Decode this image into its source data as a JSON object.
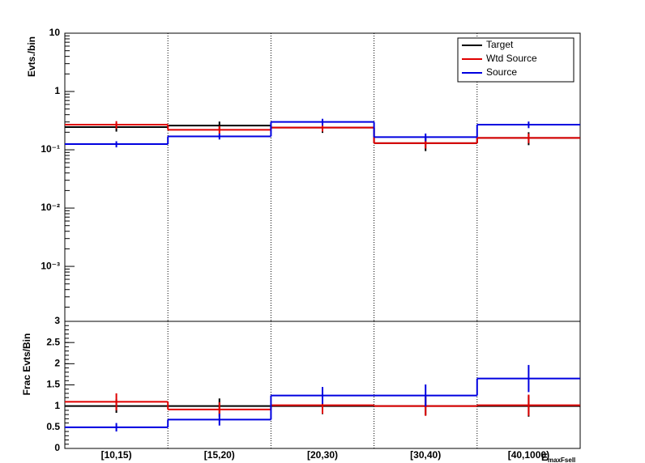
{
  "chart_data": [
    {
      "type": "step",
      "y_label": "Evts./bin",
      "log_scale": true,
      "ylim": [
        0.000114,
        10
      ],
      "yticks": [
        {
          "value": 0.001,
          "label": "10⁻³"
        },
        {
          "value": 0.01,
          "label": "10⁻²"
        },
        {
          "value": 0.1,
          "label": "10⁻¹"
        },
        1,
        10
      ],
      "categories": [
        "[10,15)",
        "[15,20)",
        "[20,30)",
        "[30,40)",
        "[40,1000)"
      ],
      "legend": "upper right",
      "grid_x": true,
      "series": [
        {
          "name": "Target",
          "color": "#000000",
          "values": [
            0.245,
            0.26,
            0.24,
            0.13,
            0.16
          ],
          "errors": [
            0.04,
            0.045,
            0.045,
            0.035,
            0.04
          ]
        },
        {
          "name": "Wtd Source",
          "color": "#e00000",
          "values": [
            0.27,
            0.22,
            0.24,
            0.13,
            0.16
          ],
          "errors": [
            0.04,
            0.035,
            0.035,
            0.025,
            0.03
          ]
        },
        {
          "name": "Source",
          "color": "#0000e0",
          "values": [
            0.125,
            0.17,
            0.3,
            0.165,
            0.27
          ],
          "errors": [
            0.015,
            0.02,
            0.04,
            0.025,
            0.035
          ]
        }
      ]
    },
    {
      "type": "step",
      "y_label": "Frac Evts/Bin",
      "log_scale": false,
      "ylim": [
        0,
        3
      ],
      "yticks": [
        0,
        0.5,
        1,
        1.5,
        2,
        2.5,
        3
      ],
      "categories": [
        "[10,15)",
        "[15,20)",
        "[20,30)",
        "[30,40)",
        "[40,1000)"
      ],
      "x_label": "E",
      "x_label_sub": "maxFsell",
      "grid_x": true,
      "series": [
        {
          "color": "#000000",
          "values": [
            1,
            1,
            1,
            1,
            1
          ],
          "errors": [
            0.16,
            0.18,
            0.19,
            0.22,
            0.25
          ]
        },
        {
          "color": "#e00000",
          "values": [
            1.1,
            0.92,
            1.02,
            1.0,
            1.02
          ],
          "errors": [
            0.2,
            0.17,
            0.2,
            0.23,
            0.25
          ]
        },
        {
          "color": "#0000e0",
          "values": [
            0.5,
            0.68,
            1.25,
            1.25,
            1.65
          ],
          "errors": [
            0.1,
            0.14,
            0.2,
            0.26,
            0.32
          ]
        }
      ]
    }
  ]
}
